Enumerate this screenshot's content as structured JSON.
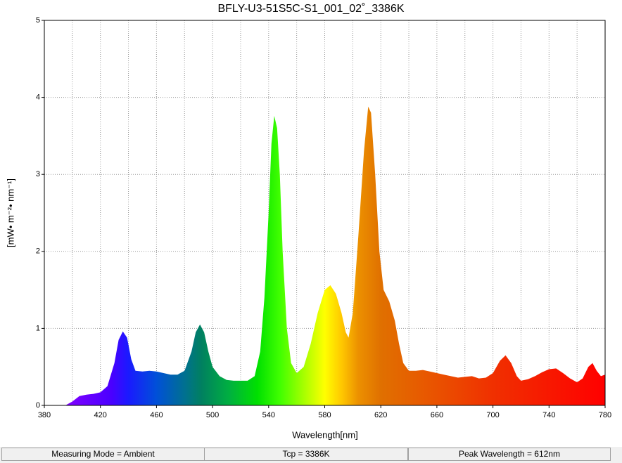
{
  "chart_data": {
    "type": "area",
    "title": "BFLY-U3-51S5C-S1_001_02˚_3386K",
    "xlabel": "Wavelength[nm]",
    "ylabel": "[mW• m⁻²• nm⁻¹]",
    "x": [
      395,
      400,
      405,
      410,
      415,
      420,
      425,
      430,
      433,
      436,
      439,
      442,
      445,
      450,
      455,
      460,
      465,
      470,
      475,
      480,
      485,
      488,
      491,
      494,
      497,
      500,
      505,
      510,
      515,
      520,
      525,
      530,
      534,
      537,
      540,
      542,
      544,
      546,
      548,
      550,
      553,
      556,
      560,
      565,
      570,
      575,
      580,
      584,
      588,
      592,
      595,
      597,
      600,
      604,
      608,
      611,
      613,
      616,
      619,
      622,
      626,
      630,
      633,
      636,
      640,
      645,
      650,
      655,
      660,
      665,
      670,
      675,
      680,
      685,
      690,
      695,
      700,
      705,
      709,
      713,
      717,
      720,
      725,
      730,
      735,
      740,
      745,
      750,
      755,
      760,
      764,
      768,
      771,
      774,
      777,
      780
    ],
    "values": [
      0,
      0.05,
      0.12,
      0.14,
      0.15,
      0.17,
      0.25,
      0.55,
      0.85,
      0.96,
      0.88,
      0.6,
      0.45,
      0.44,
      0.45,
      0.44,
      0.42,
      0.4,
      0.4,
      0.45,
      0.7,
      0.95,
      1.05,
      0.95,
      0.7,
      0.5,
      0.38,
      0.33,
      0.32,
      0.32,
      0.32,
      0.38,
      0.7,
      1.4,
      2.5,
      3.4,
      3.76,
      3.6,
      3.0,
      2.0,
      1.0,
      0.55,
      0.42,
      0.5,
      0.8,
      1.2,
      1.5,
      1.56,
      1.45,
      1.2,
      0.95,
      0.88,
      1.2,
      2.2,
      3.3,
      3.88,
      3.8,
      3.0,
      2.0,
      1.5,
      1.35,
      1.1,
      0.8,
      0.55,
      0.45,
      0.45,
      0.46,
      0.44,
      0.42,
      0.4,
      0.38,
      0.36,
      0.37,
      0.38,
      0.35,
      0.36,
      0.42,
      0.58,
      0.65,
      0.55,
      0.38,
      0.32,
      0.34,
      0.38,
      0.43,
      0.47,
      0.48,
      0.42,
      0.35,
      0.3,
      0.35,
      0.5,
      0.55,
      0.45,
      0.38,
      0.4
    ],
    "xlim": [
      380,
      780
    ],
    "xticks": [
      380,
      420,
      460,
      500,
      540,
      580,
      620,
      660,
      700,
      740,
      780
    ],
    "xgrid": [
      400,
      420,
      440,
      460,
      480,
      500,
      520,
      540,
      560,
      580,
      600,
      620,
      640,
      660,
      680,
      700,
      720,
      740,
      760
    ],
    "ylim": [
      0,
      5
    ],
    "yticks": [
      0,
      1,
      2,
      3,
      4,
      5
    ],
    "grid": true
  },
  "status_bar": [
    "Measuring Mode = Ambient",
    "Tcp = 3386K",
    "Peak Wavelength = 612nm"
  ]
}
